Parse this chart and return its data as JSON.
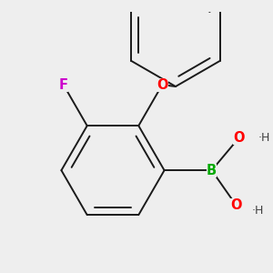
{
  "bg_color": "#eeeeee",
  "bond_color": "#1a1a1a",
  "bond_width": 1.4,
  "atoms": {
    "F": {
      "color": "#cc00cc",
      "fontsize": 10.5
    },
    "O": {
      "color": "#ff0000",
      "fontsize": 10.5
    },
    "B": {
      "color": "#00aa00",
      "fontsize": 10.5
    },
    "H": {
      "color": "#404040",
      "fontsize": 9.0
    }
  },
  "figsize": [
    3.0,
    3.0
  ],
  "dpi": 100
}
